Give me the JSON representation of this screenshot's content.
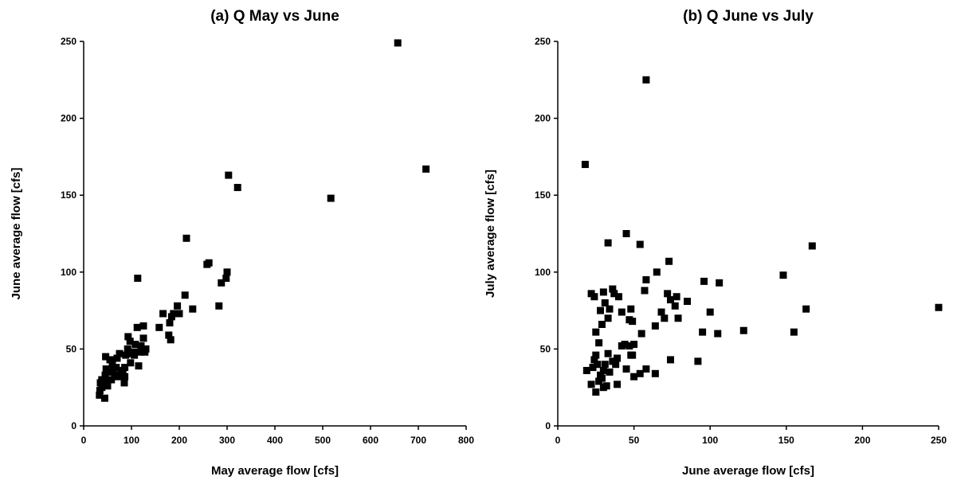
{
  "chart_data": [
    {
      "type": "scatter",
      "title": "(a)  Q   May vs June",
      "x_label": "May average flow  [cfs]",
      "y_label": "June average flow  [cfs]",
      "color": "#000000",
      "xlim": [
        0,
        800
      ],
      "xticks": [
        0,
        100,
        200,
        300,
        400,
        500,
        600,
        700,
        800
      ],
      "ylim": [
        0,
        250
      ],
      "yticks": [
        0,
        50,
        100,
        150,
        200,
        250
      ],
      "x": [
        657,
        716,
        517,
        303,
        322,
        300,
        298,
        288,
        283,
        258,
        262,
        215,
        212,
        228,
        196,
        200,
        188,
        184,
        180,
        178,
        182,
        166,
        158,
        125,
        112,
        113,
        118,
        125,
        130,
        128,
        108,
        104,
        100,
        97,
        93,
        92,
        88,
        86,
        86,
        85,
        82,
        75,
        70,
        68,
        65,
        60,
        58,
        55,
        52,
        50,
        46,
        47,
        45,
        44,
        42,
        38,
        35,
        34,
        33,
        38,
        48,
        62,
        72,
        78,
        98,
        106,
        115,
        120
      ],
      "y": [
        249,
        167,
        148,
        163,
        155,
        100,
        96,
        93,
        78,
        105,
        106,
        122,
        85,
        76,
        78,
        73,
        73,
        71,
        67,
        59,
        56,
        73,
        64,
        65,
        64,
        96,
        48,
        57,
        50,
        48,
        53,
        48,
        47,
        55,
        58,
        50,
        46,
        38,
        32,
        28,
        36,
        47,
        44,
        38,
        33,
        40,
        30,
        43,
        35,
        26,
        45,
        37,
        33,
        18,
        28,
        25,
        28,
        23,
        20,
        30,
        30,
        36,
        32,
        35,
        41,
        46,
        39,
        52
      ]
    },
    {
      "type": "scatter",
      "title": "(b)  Q  June vs July",
      "x_label": "June average flow  [cfs]",
      "y_label": "July average flow  [cfs]",
      "color": "#000000",
      "xlim": [
        0,
        250
      ],
      "xticks": [
        0,
        50,
        100,
        150,
        200,
        250
      ],
      "ylim": [
        0,
        250
      ],
      "yticks": [
        0,
        50,
        100,
        150,
        200,
        250
      ],
      "x": [
        18,
        58,
        45,
        33,
        54,
        167,
        73,
        65,
        148,
        96,
        106,
        58,
        22,
        24,
        30,
        36,
        37,
        40,
        42,
        34,
        28,
        33,
        48,
        49,
        47,
        57,
        72,
        78,
        85,
        74,
        77,
        70,
        68,
        79,
        64,
        55,
        100,
        95,
        105,
        122,
        155,
        163,
        250,
        92,
        74,
        64,
        58,
        54,
        50,
        48,
        47,
        44,
        42,
        39,
        38,
        36,
        34,
        33,
        31,
        30,
        29,
        28,
        27,
        26,
        25,
        24,
        23,
        25,
        22,
        19,
        27,
        29,
        31,
        25,
        39,
        45,
        32,
        30,
        49,
        50
      ],
      "y": [
        170,
        225,
        125,
        119,
        118,
        117,
        107,
        100,
        98,
        94,
        93,
        95,
        86,
        84,
        87,
        89,
        86,
        84,
        74,
        76,
        75,
        70,
        76,
        68,
        69,
        88,
        86,
        84,
        81,
        82,
        78,
        70,
        74,
        70,
        65,
        60,
        74,
        61,
        60,
        62,
        61,
        76,
        77,
        42,
        43,
        34,
        37,
        34,
        32,
        46,
        52,
        53,
        52,
        44,
        40,
        42,
        35,
        47,
        40,
        36,
        31,
        33,
        29,
        40,
        46,
        43,
        38,
        22,
        27,
        36,
        54,
        66,
        80,
        61,
        27,
        37,
        26,
        25,
        46,
        53
      ]
    }
  ]
}
